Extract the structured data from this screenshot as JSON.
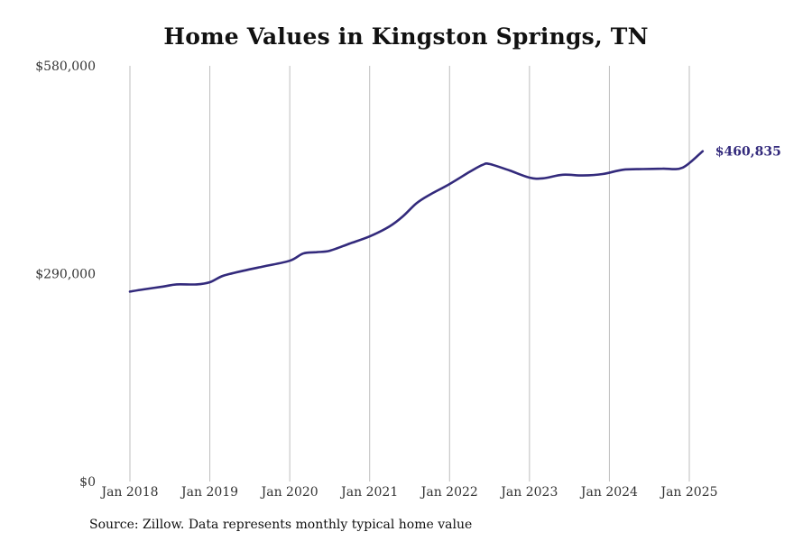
{
  "chart_data": {
    "type": "line",
    "title": "Home Values in Kingston Springs, TN",
    "ylim": [
      0,
      580000
    ],
    "y_ticks": [
      {
        "value": 0,
        "label": "$0"
      },
      {
        "value": 290000,
        "label": "$290,000"
      },
      {
        "value": 580000,
        "label": "$580,000"
      }
    ],
    "x_ticks": [
      {
        "value": "2018-01",
        "label": "Jan 2018"
      },
      {
        "value": "2019-01",
        "label": "Jan 2019"
      },
      {
        "value": "2020-01",
        "label": "Jan 2020"
      },
      {
        "value": "2021-01",
        "label": "Jan 2021"
      },
      {
        "value": "2022-01",
        "label": "Jan 2022"
      },
      {
        "value": "2023-01",
        "label": "Jan 2023"
      },
      {
        "value": "2024-01",
        "label": "Jan 2024"
      },
      {
        "value": "2025-01",
        "label": "Jan 2025"
      }
    ],
    "grid": {
      "vertical": true,
      "horizontal": false
    },
    "line_color": "#332a7c",
    "end_label": "$460,835",
    "series": [
      {
        "x": [
          "2018-01",
          "2018-03",
          "2018-06",
          "2018-08",
          "2018-11",
          "2019-01",
          "2019-03",
          "2019-06",
          "2019-09",
          "2020-01",
          "2020-03",
          "2020-05",
          "2020-07",
          "2020-10",
          "2021-01",
          "2021-04",
          "2021-06",
          "2021-08",
          "2021-10",
          "2022-01",
          "2022-04",
          "2022-06",
          "2022-07",
          "2022-10",
          "2023-01",
          "2023-03",
          "2023-06",
          "2023-09",
          "2023-12",
          "2024-03",
          "2024-06",
          "2024-09",
          "2024-12",
          "2025-03"
        ],
        "values": [
          265000,
          268000,
          272000,
          275000,
          275000,
          278000,
          287000,
          294000,
          300000,
          308000,
          318000,
          320000,
          322000,
          332000,
          342000,
          356000,
          370000,
          388000,
          400000,
          415000,
          432000,
          442000,
          443000,
          434000,
          424000,
          423000,
          428000,
          427000,
          429000,
          435000,
          436000,
          436500,
          438000,
          460835
        ]
      }
    ]
  },
  "footer": {
    "source": "Source: Zillow. Data represents monthly typical home value"
  }
}
